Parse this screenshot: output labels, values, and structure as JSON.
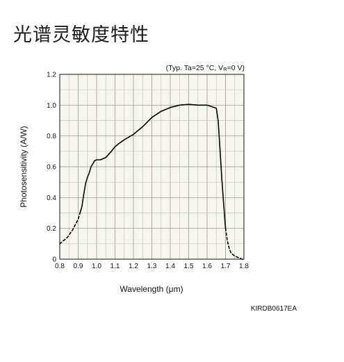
{
  "heading": "光谱灵敏度特性",
  "figure_code": "KIRDB0617EA",
  "chart_data": {
    "type": "line",
    "title": "",
    "condition_note_prefix": "(Typ. Ta=25 °C, V",
    "condition_note_sub": "R",
    "condition_note_suffix": "=0 V)",
    "xlabel": "Wavelength (μm)",
    "ylabel": "Photosensitivity (A/W)",
    "xlim": [
      0.8,
      1.8
    ],
    "ylim": [
      0,
      1.2
    ],
    "grid": true,
    "x_ticks": [
      "0.8",
      "0.9",
      "1.0",
      "1.1",
      "1.2",
      "1.3",
      "1.4",
      "1.5",
      "1.6",
      "1.7",
      "1.8"
    ],
    "y_ticks": [
      "0",
      "0.2",
      "0.4",
      "0.6",
      "0.8",
      "1.0",
      "1.2"
    ],
    "series": [
      {
        "style": "dashed",
        "x": [
          0.8,
          0.84,
          0.87,
          0.9,
          0.91
        ],
        "y": [
          0.1,
          0.14,
          0.19,
          0.26,
          0.3
        ]
      },
      {
        "style": "solid",
        "x": [
          0.91,
          0.92,
          0.93,
          0.94,
          0.95,
          0.96,
          0.97,
          0.98,
          0.99,
          1.0,
          1.02,
          1.05,
          1.08,
          1.1,
          1.12,
          1.15,
          1.2,
          1.25,
          1.3,
          1.35,
          1.4,
          1.45,
          1.5,
          1.55,
          1.6,
          1.65,
          1.66,
          1.67,
          1.68,
          1.69,
          1.7
        ],
        "y": [
          0.3,
          0.34,
          0.42,
          0.49,
          0.53,
          0.56,
          0.6,
          0.62,
          0.64,
          0.645,
          0.645,
          0.66,
          0.7,
          0.73,
          0.75,
          0.775,
          0.81,
          0.86,
          0.92,
          0.96,
          0.985,
          1.0,
          1.005,
          1.0,
          1.0,
          0.98,
          0.9,
          0.72,
          0.52,
          0.36,
          0.2
        ]
      },
      {
        "style": "dashed",
        "x": [
          1.7,
          1.71,
          1.72,
          1.73,
          1.75,
          1.77,
          1.79
        ],
        "y": [
          0.2,
          0.12,
          0.07,
          0.04,
          0.02,
          0.01,
          0.0
        ]
      }
    ]
  }
}
